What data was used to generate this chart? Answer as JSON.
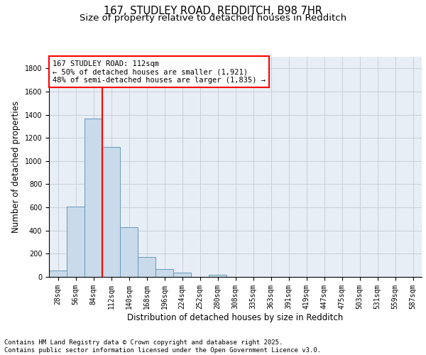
{
  "title1": "167, STUDLEY ROAD, REDDITCH, B98 7HR",
  "title2": "Size of property relative to detached houses in Redditch",
  "xlabel": "Distribution of detached houses by size in Redditch",
  "ylabel": "Number of detached properties",
  "bar_labels": [
    "28sqm",
    "56sqm",
    "84sqm",
    "112sqm",
    "140sqm",
    "168sqm",
    "196sqm",
    "224sqm",
    "252sqm",
    "280sqm",
    "308sqm",
    "335sqm",
    "363sqm",
    "391sqm",
    "419sqm",
    "447sqm",
    "475sqm",
    "503sqm",
    "531sqm",
    "559sqm",
    "587sqm"
  ],
  "bar_values": [
    58,
    605,
    1365,
    1120,
    430,
    170,
    68,
    35,
    0,
    20,
    0,
    0,
    0,
    0,
    0,
    0,
    0,
    0,
    0,
    0,
    0
  ],
  "bar_color": "#c9daea",
  "bar_edge_color": "#6699bb",
  "vline_color": "red",
  "vline_x_index": 3,
  "annotation_text": "167 STUDLEY ROAD: 112sqm\n← 50% of detached houses are smaller (1,921)\n48% of semi-detached houses are larger (1,835) →",
  "annotation_box_color": "white",
  "annotation_box_edge": "red",
  "ylim": [
    0,
    1900
  ],
  "yticks": [
    0,
    200,
    400,
    600,
    800,
    1000,
    1200,
    1400,
    1600,
    1800
  ],
  "grid_color": "#c8d0da",
  "bg_color": "#e8eef5",
  "footer_text": "Contains HM Land Registry data © Crown copyright and database right 2025.\nContains public sector information licensed under the Open Government Licence v3.0.",
  "title_fontsize": 10.5,
  "subtitle_fontsize": 9.5,
  "label_fontsize": 8.5,
  "tick_fontsize": 7,
  "annotation_fontsize": 7.5,
  "footer_fontsize": 6.5
}
